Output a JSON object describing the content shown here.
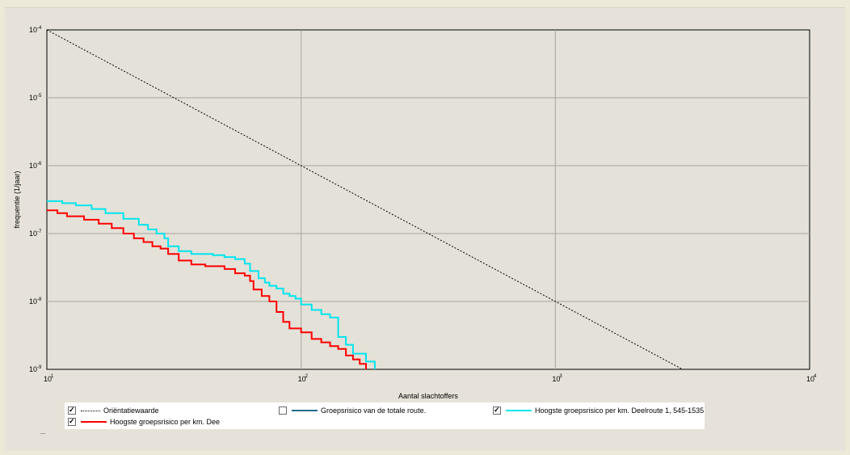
{
  "chart_data": {
    "type": "line",
    "xscale": "log",
    "yscale": "log",
    "xlabel": "Aantal slachtoffers",
    "ylabel": "frequentie (1/jaar)",
    "xlim": [
      10,
      10000
    ],
    "ylim": [
      1e-09,
      0.0001
    ],
    "grid": true,
    "x_ticks": [
      {
        "base": "10",
        "exp": "1",
        "value": 10
      },
      {
        "base": "10",
        "exp": "2",
        "value": 100
      },
      {
        "base": "10",
        "exp": "3",
        "value": 1000
      },
      {
        "base": "10",
        "exp": "4",
        "value": 10000
      }
    ],
    "y_ticks": [
      {
        "base": "10",
        "exp": "-4",
        "value": 0.0001
      },
      {
        "base": "10",
        "exp": "-5",
        "value": 1e-05
      },
      {
        "base": "10",
        "exp": "-6",
        "value": 1e-06
      },
      {
        "base": "10",
        "exp": "-7",
        "value": 1e-07
      },
      {
        "base": "10",
        "exp": "-8",
        "value": 1e-08
      },
      {
        "base": "10",
        "exp": "-9",
        "value": 1e-09
      }
    ],
    "series": [
      {
        "name": "Oriëntatiewaarde",
        "color": "#000000",
        "dash": "dotted",
        "shape": "line",
        "checked": true,
        "visible": true,
        "x": [
          10,
          3162
        ],
        "y": [
          0.0001,
          1e-09
        ]
      },
      {
        "name": "Groepsrisico van de totale route.",
        "color": "#1e6e8c",
        "dash": "solid",
        "shape": "step",
        "checked": false,
        "visible": false,
        "x": [],
        "y": []
      },
      {
        "name": "Hoogste groepsrisico per km. Deelroute 1, 545-1535",
        "color": "#00e5ee",
        "dash": "solid",
        "shape": "step",
        "checked": true,
        "visible": true,
        "x": [
          10,
          11.5,
          13,
          15,
          17,
          20,
          23,
          25,
          27,
          29,
          30,
          33,
          37,
          45,
          50,
          55,
          60,
          63,
          68,
          72,
          75,
          80,
          85,
          90,
          95,
          100,
          110,
          120,
          130,
          140,
          150,
          160,
          180,
          195
        ],
        "y": [
          3e-07,
          2.8e-07,
          2.6e-07,
          2.3e-07,
          2e-07,
          1.65e-07,
          1.35e-07,
          1.15e-07,
          1e-07,
          8.5e-08,
          6.5e-08,
          5.5e-08,
          5e-08,
          4.8e-08,
          4.5e-08,
          4.2e-08,
          3.6e-08,
          2.8e-08,
          2.2e-08,
          1.9e-08,
          1.7e-08,
          1.55e-08,
          1.3e-08,
          1.2e-08,
          1.1e-08,
          9e-09,
          7.5e-09,
          6.5e-09,
          5.8e-09,
          3e-09,
          2.3e-09,
          1.7e-09,
          1.3e-09,
          1e-09
        ]
      },
      {
        "name": "Hoogste groepsrisico per km. Dee",
        "color": "#ff0000",
        "dash": "solid",
        "shape": "step",
        "checked": true,
        "visible": true,
        "x": [
          10,
          11,
          12,
          14,
          16,
          18,
          20,
          22,
          24,
          26,
          28,
          30,
          33,
          37,
          42,
          50,
          55,
          60,
          63,
          65,
          70,
          75,
          80,
          85,
          90,
          100,
          110,
          120,
          130,
          140,
          150,
          160,
          170,
          180
        ],
        "y": [
          2.2e-07,
          2e-07,
          1.8e-07,
          1.6e-07,
          1.4e-07,
          1.2e-07,
          1e-07,
          8.5e-08,
          7.5e-08,
          6.5e-08,
          6e-08,
          5e-08,
          4e-08,
          3.5e-08,
          3.3e-08,
          3e-08,
          2.6e-08,
          2.4e-08,
          2e-08,
          1.5e-08,
          1.2e-08,
          1e-08,
          7e-09,
          5e-09,
          4e-09,
          3.5e-09,
          2.8e-09,
          2.5e-09,
          2.2e-09,
          2e-09,
          1.6e-09,
          1.4e-09,
          1.2e-09,
          1e-09
        ]
      }
    ]
  },
  "legend": {
    "items": [
      {
        "label": "Oriëntatiewaarde",
        "checked": true
      },
      {
        "label": "Groepsrisico van de totale route.",
        "checked": false
      },
      {
        "label": "Hoogste groepsrisico per km. Deelroute 1, 545-1535",
        "checked": true
      },
      {
        "label": "Hoogste groepsrisico per km. Dee",
        "checked": true
      }
    ]
  }
}
